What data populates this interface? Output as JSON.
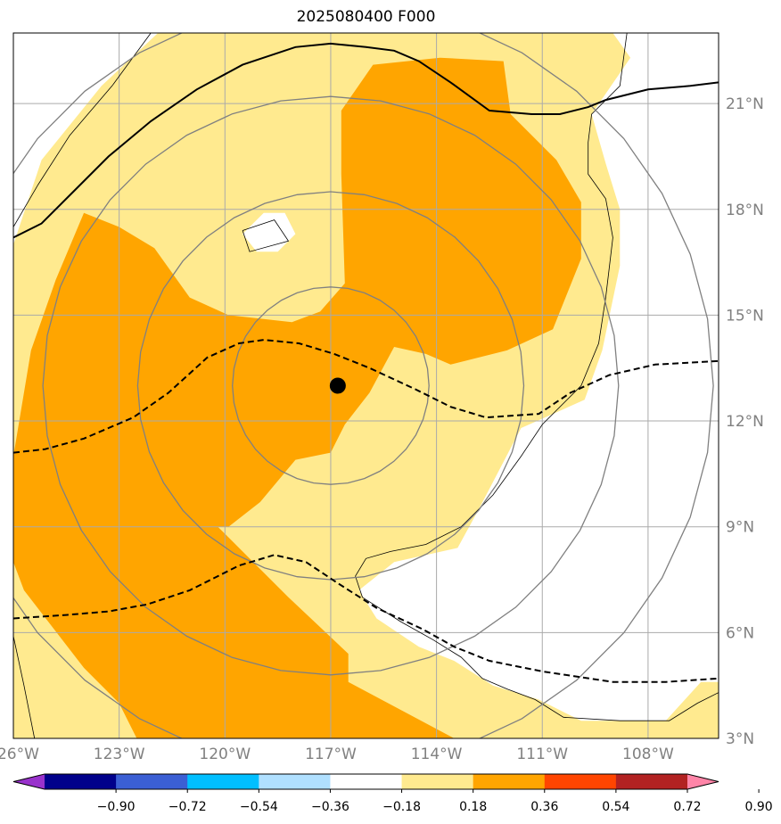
{
  "title": "2025080400 F000",
  "chart_data": {
    "type": "heatmap",
    "title": "2025080400 F000",
    "xlim": [
      -126.0,
      -106.0
    ],
    "ylim": [
      3.0,
      23.0
    ],
    "x_ticks": [
      {
        "value": -126,
        "label": "126°W"
      },
      {
        "value": -123,
        "label": "123°W"
      },
      {
        "value": -120,
        "label": "120°W"
      },
      {
        "value": -117,
        "label": "117°W"
      },
      {
        "value": -114,
        "label": "114°W"
      },
      {
        "value": -111,
        "label": "111°W"
      },
      {
        "value": -108,
        "label": "108°W"
      }
    ],
    "y_ticks": [
      {
        "value": 3,
        "label": "3°N"
      },
      {
        "value": 6,
        "label": "6°N"
      },
      {
        "value": 9,
        "label": "9°N"
      },
      {
        "value": 12,
        "label": "12°N"
      },
      {
        "value": 15,
        "label": "15°N"
      },
      {
        "value": 18,
        "label": "18°N"
      },
      {
        "value": 21,
        "label": "21°N"
      }
    ],
    "grid": true,
    "colorbar": {
      "levels": [
        -0.9,
        -0.72,
        -0.54,
        -0.36,
        -0.18,
        0.18,
        0.36,
        0.54,
        0.72,
        0.9
      ],
      "labels": [
        "−0.90",
        "−0.72",
        "−0.54",
        "−0.36",
        "−0.18",
        "0.18",
        "0.36",
        "0.54",
        "0.72",
        "0.90"
      ],
      "colors": [
        "#9932cc",
        "#00008b",
        "#3b5fd4",
        "#00bfff",
        "#b0e0ff",
        "#ffffff",
        "#ffea8f",
        "#ffa500",
        "#ff4500",
        "#b22222",
        "#ff85a8"
      ],
      "extend": "both"
    },
    "fill_regions": [
      {
        "level": "0.18-0.36",
        "color": "#ffea8f",
        "polygon": [
          [
            -126,
            17
          ],
          [
            -125.2,
            19.4
          ],
          [
            -123.5,
            21.5
          ],
          [
            -121.9,
            23
          ],
          [
            -109,
            23
          ],
          [
            -108.5,
            22.3
          ],
          [
            -109.6,
            20.7
          ],
          [
            -109.2,
            19.3
          ],
          [
            -108.8,
            18
          ],
          [
            -108.8,
            16.4
          ],
          [
            -109.3,
            14
          ],
          [
            -109.8,
            12.6
          ],
          [
            -111.6,
            11.8
          ],
          [
            -112.8,
            9.5
          ],
          [
            -113.4,
            8.4
          ],
          [
            -115.2,
            8
          ],
          [
            -116.2,
            7.2
          ],
          [
            -115.7,
            6.4
          ],
          [
            -114.5,
            5.6
          ],
          [
            -113.5,
            5.2
          ],
          [
            -112.4,
            4.5
          ],
          [
            -111.1,
            4.1
          ],
          [
            -109.9,
            3.5
          ],
          [
            -107.5,
            3.5
          ],
          [
            -106.5,
            4.6
          ],
          [
            -106,
            4.6
          ],
          [
            -106,
            3
          ],
          [
            -126,
            3
          ]
        ]
      },
      {
        "level": "0.36-0.54",
        "color": "#ffa500",
        "polygon": [
          [
            -124.0,
            17.9
          ],
          [
            -123.0,
            17.5
          ],
          [
            -122.0,
            16.9
          ],
          [
            -121.0,
            15.5
          ],
          [
            -119.9,
            15.0
          ],
          [
            -118.1,
            14.8
          ],
          [
            -117.3,
            15.1
          ],
          [
            -116.6,
            15.9
          ],
          [
            -116.7,
            19.0
          ],
          [
            -116.7,
            20.8
          ],
          [
            -115.8,
            22.1
          ],
          [
            -113.9,
            22.3
          ],
          [
            -112.1,
            22.2
          ],
          [
            -111.9,
            20.7
          ],
          [
            -110.6,
            19.4
          ],
          [
            -109.9,
            18.2
          ],
          [
            -109.9,
            16.6
          ],
          [
            -110.7,
            14.6
          ],
          [
            -112.0,
            14.0
          ],
          [
            -113.6,
            13.6
          ],
          [
            -114.3,
            13.9
          ],
          [
            -115.2,
            14.1
          ],
          [
            -115.9,
            12.8
          ],
          [
            -116.6,
            11.9
          ],
          [
            -117.0,
            11.1
          ],
          [
            -118.0,
            10.9
          ],
          [
            -119.0,
            9.7
          ],
          [
            -119.9,
            9.0
          ],
          [
            -120.2,
            9.0
          ],
          [
            -118.2,
            7.0
          ],
          [
            -116.5,
            5.4
          ],
          [
            -116.5,
            4.6
          ],
          [
            -113.5,
            3.0
          ],
          [
            -122.5,
            3.0
          ],
          [
            -123.0,
            4.0
          ],
          [
            -124.0,
            5.0
          ],
          [
            -125.7,
            7.2
          ],
          [
            -126.0,
            8.0
          ],
          [
            -126.0,
            11.0
          ],
          [
            -125.5,
            14.0
          ],
          [
            -124.8,
            16.0
          ]
        ]
      },
      {
        "level": "-0.18-0.18",
        "color": "#ffffff",
        "polygon": [
          [
            -119.5,
            17.3
          ],
          [
            -118.9,
            17.9
          ],
          [
            -118.3,
            17.9
          ],
          [
            -118.0,
            17.3
          ],
          [
            -118.5,
            16.8
          ],
          [
            -119.1,
            16.8
          ]
        ]
      }
    ],
    "solid_contour": [
      [
        -126,
        17.2
      ],
      [
        -125.2,
        17.6
      ],
      [
        -124.2,
        18.6
      ],
      [
        -123.3,
        19.5
      ],
      [
        -122.1,
        20.5
      ],
      [
        -120.8,
        21.4
      ],
      [
        -119.5,
        22.1
      ],
      [
        -118.0,
        22.6
      ],
      [
        -117.0,
        22.7
      ],
      [
        -116.0,
        22.6
      ],
      [
        -115.2,
        22.5
      ],
      [
        -114.5,
        22.2
      ],
      [
        -113.6,
        21.6
      ],
      [
        -112.5,
        20.8
      ],
      [
        -111.3,
        20.7
      ],
      [
        -110.5,
        20.7
      ],
      [
        -109.7,
        20.9
      ],
      [
        -109.2,
        21.1
      ],
      [
        -108.0,
        21.4
      ],
      [
        -106.8,
        21.5
      ],
      [
        -106.0,
        21.6
      ]
    ],
    "dashed_contours": [
      [
        [
          -126,
          11.1
        ],
        [
          -125.1,
          11.2
        ],
        [
          -124.0,
          11.5
        ],
        [
          -122.6,
          12.1
        ],
        [
          -121.6,
          12.8
        ],
        [
          -120.5,
          13.8
        ],
        [
          -119.6,
          14.2
        ],
        [
          -118.9,
          14.3
        ],
        [
          -117.9,
          14.2
        ],
        [
          -116.9,
          13.9
        ],
        [
          -115.9,
          13.5
        ],
        [
          -114.6,
          12.9
        ],
        [
          -113.6,
          12.4
        ],
        [
          -112.6,
          12.1
        ],
        [
          -111.1,
          12.2
        ],
        [
          -110.2,
          12.8
        ],
        [
          -109.1,
          13.3
        ],
        [
          -107.8,
          13.6
        ],
        [
          -106.0,
          13.7
        ]
      ],
      [
        [
          -126,
          6.4
        ],
        [
          -124.5,
          6.5
        ],
        [
          -123.3,
          6.6
        ],
        [
          -122.2,
          6.8
        ],
        [
          -121.0,
          7.2
        ],
        [
          -119.6,
          7.9
        ],
        [
          -118.6,
          8.2
        ],
        [
          -117.7,
          8.0
        ],
        [
          -116.8,
          7.4
        ],
        [
          -115.7,
          6.7
        ],
        [
          -114.4,
          6.1
        ],
        [
          -113.5,
          5.6
        ],
        [
          -112.5,
          5.2
        ],
        [
          -111.0,
          4.9
        ],
        [
          -109.0,
          4.6
        ],
        [
          -107.5,
          4.6
        ],
        [
          -106.0,
          4.7
        ]
      ]
    ],
    "center_marker": {
      "lon": -116.8,
      "lat": 13.0
    },
    "range_rings": [
      {
        "lon": -117.0,
        "lat": 13.0,
        "radius_deg": 2.8
      },
      {
        "lon": -117.0,
        "lat": 13.0,
        "radius_deg": 5.5
      },
      {
        "lon": -117.0,
        "lat": 13.0,
        "radius_deg": 8.2
      },
      {
        "lon": -117.0,
        "lat": 13.0,
        "radius_deg": 10.9
      }
    ]
  }
}
